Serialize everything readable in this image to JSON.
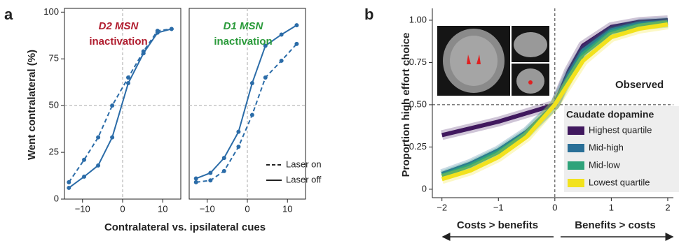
{
  "panel_labels": [
    "a",
    "b"
  ],
  "chart_data": [
    {
      "type": "line",
      "title": "D2 MSN",
      "subtitle": "inactivation",
      "title_color": "#b01c2e",
      "y_label": "Went contralateral (%)",
      "x_label": "Contralateral vs. ipsilateral cues",
      "x": [
        -13.4,
        -9.6,
        -6.1,
        -2.6,
        1.4,
        5.2,
        8.7,
        12.2
      ],
      "series": [
        {
          "dashed": true,
          "color": "#2b6ca8",
          "values": [
            9,
            21,
            33,
            50,
            65,
            79,
            90,
            91
          ]
        },
        {
          "dashed": false,
          "color": "#2b6ca8",
          "values": [
            6,
            12,
            18,
            33,
            62,
            78,
            89,
            91
          ]
        }
      ],
      "xlim": [
        -14.5,
        14.5
      ],
      "ylim": [
        0,
        102
      ],
      "xticks": [
        {
          "value": -10,
          "label": "−10"
        },
        0,
        10
      ],
      "yticks": [
        0,
        25,
        50,
        75,
        100
      ],
      "ref_x": 0,
      "ref_y": 50,
      "ref_color": "#aaaaaa",
      "frame": true
    },
    {
      "type": "line",
      "title": "D1 MSN",
      "subtitle": "inactivation",
      "title_color": "#2a9a3a",
      "x": [
        -12.8,
        -9.2,
        -5.8,
        -2.2,
        1.2,
        4.5,
        8.5,
        12.3
      ],
      "series": [
        {
          "name": "Laser on",
          "dashed": true,
          "color": "#2b6ca8",
          "values": [
            9,
            10,
            15,
            28,
            45,
            65,
            74,
            83
          ]
        },
        {
          "name": "Laser off",
          "dashed": false,
          "color": "#2b6ca8",
          "values": [
            11,
            14,
            22,
            36,
            62,
            82,
            88,
            93
          ]
        }
      ],
      "xlim": [
        -14.5,
        14.5
      ],
      "ylim": [
        0,
        102
      ],
      "xticks": [
        {
          "value": -10,
          "label": "−10"
        },
        0,
        10
      ],
      "ref_x": 0,
      "ref_y": 50,
      "ref_color": "#aaaaaa",
      "frame": true
    },
    {
      "type": "line",
      "y_label": "Proportion high effort choice",
      "annotations": [
        "Observed",
        "Costs > benefits",
        "Benefits > costs"
      ],
      "legend_title": "Caudate dopamine",
      "x": [
        -2,
        -1.5,
        -1,
        -0.5,
        0,
        0.25,
        0.5,
        1,
        1.5,
        2
      ],
      "series": [
        {
          "name": "Highest quartile",
          "color": "#40185e",
          "values": [
            0.32,
            0.36,
            0.4,
            0.45,
            0.5,
            0.7,
            0.85,
            0.96,
            0.99,
            1.0
          ]
        },
        {
          "name": "Mid-high",
          "color": "#2a6f97",
          "values": [
            0.09,
            0.15,
            0.23,
            0.34,
            0.5,
            0.68,
            0.82,
            0.94,
            0.98,
            0.99
          ]
        },
        {
          "name": "Mid-low",
          "color": "#2fa37a",
          "values": [
            0.08,
            0.14,
            0.22,
            0.33,
            0.5,
            0.66,
            0.8,
            0.93,
            0.97,
            0.985
          ]
        },
        {
          "name": "Lowest quartile",
          "color": "#f2e21d",
          "values": [
            0.06,
            0.11,
            0.19,
            0.31,
            0.5,
            0.63,
            0.76,
            0.9,
            0.95,
            0.975
          ]
        }
      ],
      "xlim": [
        -2.17,
        2.1
      ],
      "ylim": [
        -0.05,
        1.07
      ],
      "xticks": [
        {
          "value": -2,
          "label": "−2"
        },
        {
          "value": -1,
          "label": "−1"
        },
        0,
        1,
        2
      ],
      "yticks": [
        0,
        0.25,
        {
          "value": 0.5,
          "label": "0.50"
        },
        0.75,
        {
          "value": 1,
          "label": "1.00"
        }
      ],
      "ref_x": 0,
      "ref_y": 0.5,
      "ref_color": "#333333",
      "frame": false
    }
  ]
}
